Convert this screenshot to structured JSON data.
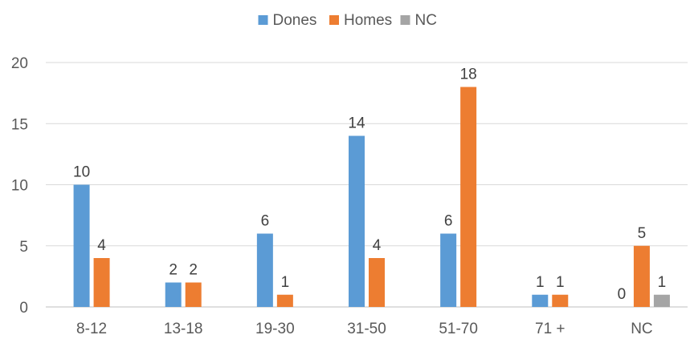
{
  "chart_data": {
    "type": "bar",
    "title": "",
    "xlabel": "",
    "ylabel": "",
    "categories": [
      "8-12",
      "13-18",
      "19-30",
      "31-50",
      "51-70",
      "71 +",
      "NC"
    ],
    "series": [
      {
        "name": "Dones",
        "color": "#5b9bd5",
        "values": [
          10,
          2,
          6,
          14,
          6,
          1,
          0
        ]
      },
      {
        "name": "Homes",
        "color": "#ed7d31",
        "values": [
          4,
          2,
          1,
          4,
          18,
          1,
          5
        ]
      },
      {
        "name": "NC",
        "color": "#a5a5a5",
        "values": [
          null,
          null,
          null,
          null,
          null,
          null,
          1
        ]
      }
    ],
    "yticks": [
      0,
      5,
      10,
      15,
      20
    ],
    "ylim": [
      0,
      20
    ],
    "grid": true,
    "legend": "top-center",
    "data_labels": true
  }
}
